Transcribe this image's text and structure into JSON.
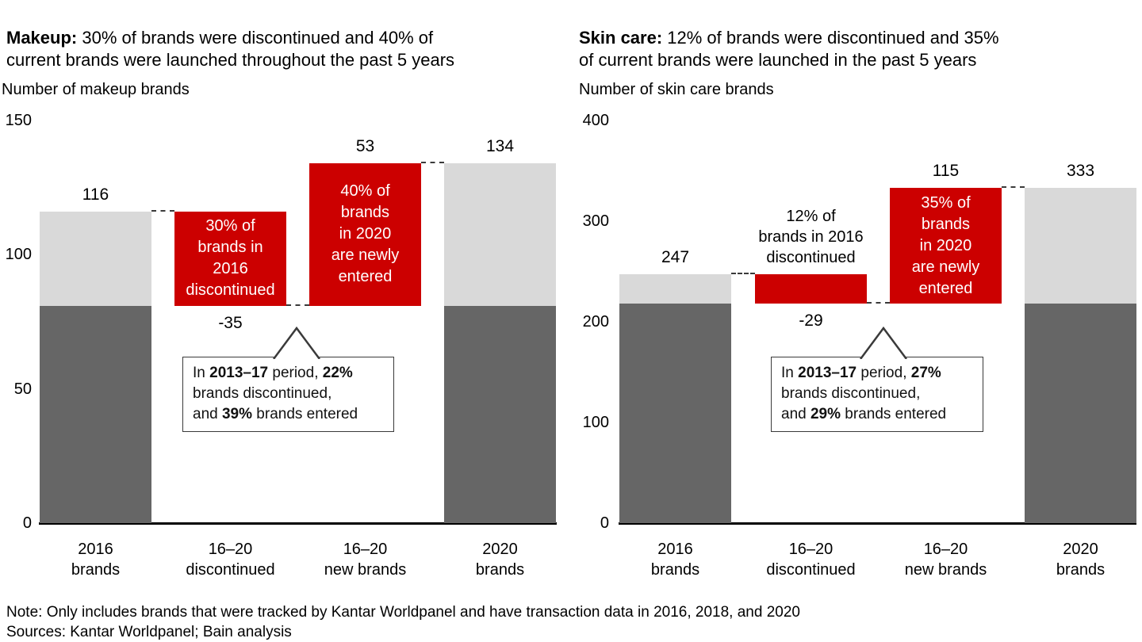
{
  "page": {
    "note": "Note: Only includes brands that were tracked by Kantar Worldpanel and have transaction data in 2016, 2018, and 2020",
    "sources": "Sources: Kantar Worldpanel; Bain analysis"
  },
  "colors": {
    "red": "#cc0000",
    "dark_gray": "#666666",
    "light_gray": "#d9d9d9",
    "line": "#3a3a3a"
  },
  "chart_data": [
    {
      "type": "bar",
      "subtype": "waterfall",
      "slug": "makeup",
      "title_bold": "Makeup:",
      "title_rest": " 30% of brands were discontinued and 40% of\ncurrent brands were launched throughout the past 5 years",
      "axis_title": "Number of makeup brands",
      "ylim": [
        0,
        150
      ],
      "yticks": [
        150,
        100,
        50,
        0
      ],
      "categories": [
        "2016\nbrands",
        "16–20\ndiscontinued",
        "16–20\nnew brands",
        "2020\nbrands"
      ],
      "bars": [
        {
          "name": "2016-brands",
          "type": "stacked",
          "total": 116,
          "label": "116",
          "label_pos": "above",
          "segments": [
            {
              "color": "dark_gray",
              "value": 81
            },
            {
              "color": "light_gray",
              "value": 35
            }
          ]
        },
        {
          "name": "16-20-discontinued",
          "type": "float",
          "from": 81,
          "to": 116,
          "color": "red",
          "label": "-35",
          "label_pos": "below",
          "inner_text": "30% of\nbrands in\n2016\ndiscontinued"
        },
        {
          "name": "16-20-new-brands",
          "type": "float",
          "from": 81,
          "to": 134,
          "color": "red",
          "label": "53",
          "label_pos": "above",
          "inner_text": "40% of\nbrands\nin 2020\nare newly\nentered"
        },
        {
          "name": "2020-brands",
          "type": "stacked",
          "total": 134,
          "label": "134",
          "label_pos": "above",
          "segments": [
            {
              "color": "dark_gray",
              "value": 81
            },
            {
              "color": "light_gray",
              "value": 53
            }
          ]
        }
      ],
      "connectors": [
        {
          "from_bar": 0,
          "to_bar": 1,
          "at": 116
        },
        {
          "from_bar": 1,
          "to_bar": 2,
          "at": 81
        },
        {
          "from_bar": 2,
          "to_bar": 3,
          "at": 134
        }
      ],
      "annotation": null,
      "callout": {
        "segments": [
          {
            "t": "In ",
            "b": false
          },
          {
            "t": "2013–17",
            "b": true
          },
          {
            "t": " period, ",
            "b": false
          },
          {
            "t": "22%",
            "b": true
          },
          {
            "t": "\nbrands discontinued,\nand ",
            "b": false
          },
          {
            "t": "39%",
            "b": true
          },
          {
            "t": " brands entered",
            "b": false
          }
        ]
      }
    },
    {
      "type": "bar",
      "subtype": "waterfall",
      "slug": "skin-care",
      "title_bold": "Skin care:",
      "title_rest": " 12% of brands were discontinued and 35%\nof current brands were launched in the past 5 years",
      "axis_title": "Number of skin care brands",
      "ylim": [
        0,
        400
      ],
      "yticks": [
        400,
        300,
        200,
        100,
        0
      ],
      "categories": [
        "2016\nbrands",
        "16–20\ndiscontinued",
        "16–20\nnew brands",
        "2020\nbrands"
      ],
      "bars": [
        {
          "name": "2016-brands",
          "type": "stacked",
          "total": 247,
          "label": "247",
          "label_pos": "above",
          "segments": [
            {
              "color": "dark_gray",
              "value": 218
            },
            {
              "color": "light_gray",
              "value": 29
            }
          ]
        },
        {
          "name": "16-20-discontinued",
          "type": "float",
          "from": 218,
          "to": 247,
          "color": "red",
          "label": "-29",
          "label_pos": "below",
          "inner_text": null
        },
        {
          "name": "16-20-new-brands",
          "type": "float",
          "from": 218,
          "to": 333,
          "color": "red",
          "label": "115",
          "label_pos": "above",
          "inner_text": "35% of\nbrands\nin 2020\nare newly\nentered"
        },
        {
          "name": "2020-brands",
          "type": "stacked",
          "total": 333,
          "label": "333",
          "label_pos": "above",
          "segments": [
            {
              "color": "dark_gray",
              "value": 218
            },
            {
              "color": "light_gray",
              "value": 115
            }
          ]
        }
      ],
      "connectors": [
        {
          "from_bar": 0,
          "to_bar": 1,
          "at": 247
        },
        {
          "from_bar": 1,
          "to_bar": 2,
          "at": 218
        },
        {
          "from_bar": 2,
          "to_bar": 3,
          "at": 333
        }
      ],
      "annotation": {
        "bar": 1,
        "text": "12% of\nbrands in 2016\ndiscontinued"
      },
      "callout": {
        "segments": [
          {
            "t": "In ",
            "b": false
          },
          {
            "t": "2013–17",
            "b": true
          },
          {
            "t": " period, ",
            "b": false
          },
          {
            "t": "27%",
            "b": true
          },
          {
            "t": "\nbrands discontinued,\nand ",
            "b": false
          },
          {
            "t": "29%",
            "b": true
          },
          {
            "t": " brands entered",
            "b": false
          }
        ]
      }
    }
  ]
}
